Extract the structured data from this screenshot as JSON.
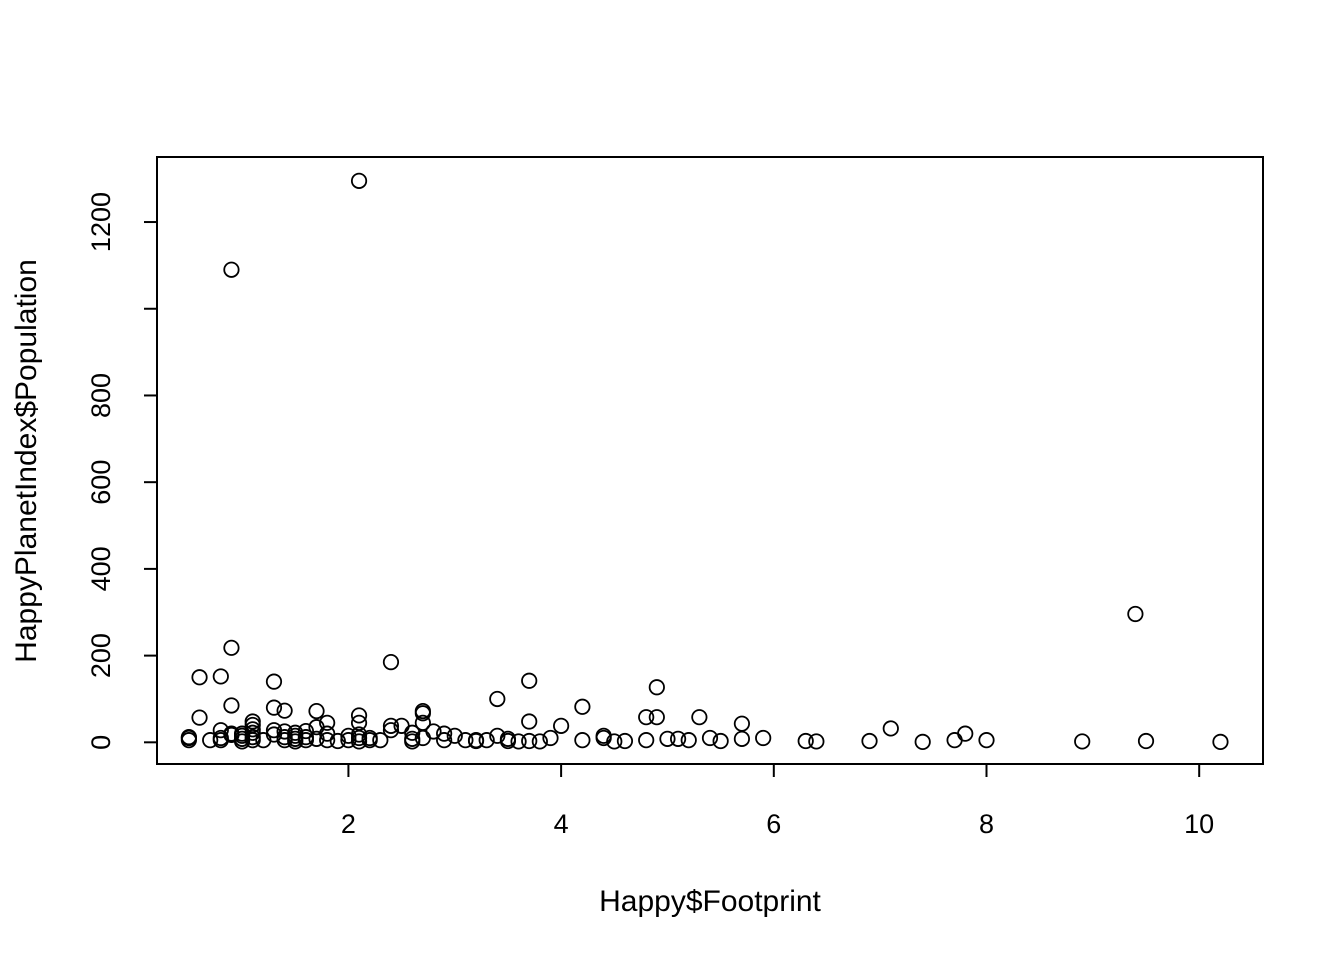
{
  "chart_data": {
    "type": "scatter",
    "title": "",
    "xlabel": "Happy$Footprint",
    "ylabel": "HappyPlanetIndex$Population",
    "xlim": [
      0.2,
      10.6
    ],
    "ylim": [
      -50,
      1350
    ],
    "x_ticks": [
      2,
      4,
      6,
      8,
      10
    ],
    "y_ticks": [
      0,
      200,
      400,
      600,
      800,
      1000,
      1200
    ],
    "y_tick_labels": [
      "0",
      "200",
      "400",
      "600",
      "800",
      "",
      "1200"
    ],
    "grid": false,
    "legend": "none",
    "marker": "open-circle",
    "colors": {
      "points": "#000000",
      "frame": "#000000",
      "background": "#ffffff"
    },
    "points": [
      [
        0.5,
        5
      ],
      [
        0.5,
        10
      ],
      [
        0.5,
        12
      ],
      [
        0.6,
        57
      ],
      [
        0.6,
        150
      ],
      [
        0.7,
        5
      ],
      [
        0.8,
        5
      ],
      [
        0.8,
        10
      ],
      [
        0.8,
        28
      ],
      [
        0.8,
        152
      ],
      [
        0.9,
        17
      ],
      [
        0.9,
        20
      ],
      [
        0.9,
        85
      ],
      [
        0.9,
        218
      ],
      [
        0.9,
        1090
      ],
      [
        1.0,
        2
      ],
      [
        1.0,
        8
      ],
      [
        1.0,
        15
      ],
      [
        1.0,
        20
      ],
      [
        1.1,
        5
      ],
      [
        1.1,
        12
      ],
      [
        1.1,
        22
      ],
      [
        1.1,
        30
      ],
      [
        1.1,
        40
      ],
      [
        1.1,
        48
      ],
      [
        1.2,
        5
      ],
      [
        1.3,
        18
      ],
      [
        1.3,
        28
      ],
      [
        1.3,
        80
      ],
      [
        1.3,
        140
      ],
      [
        1.4,
        5
      ],
      [
        1.4,
        12
      ],
      [
        1.4,
        25
      ],
      [
        1.4,
        73
      ],
      [
        1.5,
        2
      ],
      [
        1.5,
        8
      ],
      [
        1.5,
        15
      ],
      [
        1.5,
        22
      ],
      [
        1.6,
        5
      ],
      [
        1.6,
        12
      ],
      [
        1.6,
        26
      ],
      [
        1.7,
        8
      ],
      [
        1.7,
        35
      ],
      [
        1.7,
        72
      ],
      [
        1.8,
        5
      ],
      [
        1.8,
        20
      ],
      [
        1.8,
        45
      ],
      [
        1.9,
        3
      ],
      [
        2.0,
        5
      ],
      [
        2.0,
        15
      ],
      [
        2.1,
        2
      ],
      [
        2.1,
        10
      ],
      [
        2.1,
        18
      ],
      [
        2.1,
        45
      ],
      [
        2.1,
        62
      ],
      [
        2.1,
        1295
      ],
      [
        2.2,
        5
      ],
      [
        2.2,
        10
      ],
      [
        2.3,
        5
      ],
      [
        2.4,
        28
      ],
      [
        2.4,
        38
      ],
      [
        2.4,
        185
      ],
      [
        2.5,
        38
      ],
      [
        2.6,
        2
      ],
      [
        2.6,
        8
      ],
      [
        2.6,
        22
      ],
      [
        2.7,
        10
      ],
      [
        2.7,
        45
      ],
      [
        2.7,
        67
      ],
      [
        2.7,
        72
      ],
      [
        2.8,
        25
      ],
      [
        2.9,
        5
      ],
      [
        2.9,
        20
      ],
      [
        3.0,
        15
      ],
      [
        3.1,
        5
      ],
      [
        3.2,
        3
      ],
      [
        3.2,
        5
      ],
      [
        3.3,
        5
      ],
      [
        3.4,
        15
      ],
      [
        3.4,
        100
      ],
      [
        3.5,
        3
      ],
      [
        3.5,
        8
      ],
      [
        3.6,
        2
      ],
      [
        3.7,
        3
      ],
      [
        3.7,
        48
      ],
      [
        3.7,
        142
      ],
      [
        3.8,
        2
      ],
      [
        3.9,
        10
      ],
      [
        4.0,
        38
      ],
      [
        4.2,
        5
      ],
      [
        4.2,
        82
      ],
      [
        4.4,
        10
      ],
      [
        4.4,
        15
      ],
      [
        4.5,
        2
      ],
      [
        4.6,
        3
      ],
      [
        4.8,
        5
      ],
      [
        4.8,
        58
      ],
      [
        4.9,
        58
      ],
      [
        4.9,
        127
      ],
      [
        5.0,
        8
      ],
      [
        5.1,
        8
      ],
      [
        5.2,
        5
      ],
      [
        5.3,
        58
      ],
      [
        5.4,
        10
      ],
      [
        5.5,
        3
      ],
      [
        5.7,
        8
      ],
      [
        5.7,
        43
      ],
      [
        5.9,
        10
      ],
      [
        6.3,
        3
      ],
      [
        6.4,
        2
      ],
      [
        6.9,
        3
      ],
      [
        7.1,
        32
      ],
      [
        7.4,
        1
      ],
      [
        7.7,
        5
      ],
      [
        7.8,
        20
      ],
      [
        8.0,
        5
      ],
      [
        8.9,
        2
      ],
      [
        9.4,
        296
      ],
      [
        9.5,
        3
      ],
      [
        10.2,
        1
      ]
    ]
  }
}
